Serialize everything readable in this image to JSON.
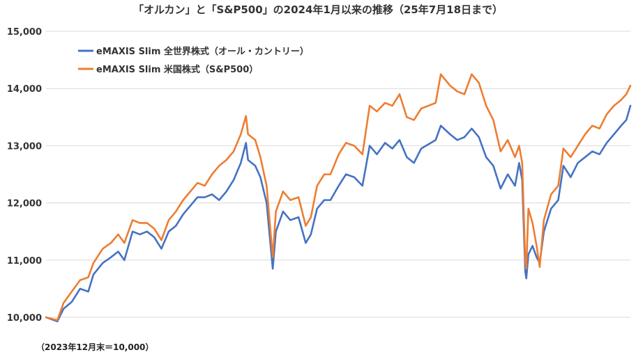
{
  "chart_data": {
    "type": "line",
    "title": "「オルカン」と「S&P500」の2024年1月以来の推移（25年7月18日まで）",
    "footnote": "（2023年12月末＝10,000）",
    "xlabel": "",
    "ylabel": "",
    "ylim": [
      10000,
      15000
    ],
    "yticks": [
      "10,000",
      "11,000",
      "12,000",
      "13,000",
      "14,000",
      "15,000"
    ],
    "ytick_values": [
      10000,
      11000,
      12000,
      13000,
      14000,
      15000
    ],
    "grid": true,
    "legend_position": "top-left",
    "x_range": [
      "2023-12-29",
      "2025-07-18"
    ],
    "series": [
      {
        "name": "eMAXIS Slim 全世界株式（オール・カントリー）",
        "color": "#4472C4",
        "points": [
          [
            "2023-12-29",
            10000
          ],
          [
            "2024-01-09",
            9930
          ],
          [
            "2024-01-15",
            10150
          ],
          [
            "2024-01-23",
            10270
          ],
          [
            "2024-01-31",
            10500
          ],
          [
            "2024-02-08",
            10450
          ],
          [
            "2024-02-13",
            10750
          ],
          [
            "2024-02-22",
            10950
          ],
          [
            "2024-03-01",
            11050
          ],
          [
            "2024-03-08",
            11150
          ],
          [
            "2024-03-14",
            11000
          ],
          [
            "2024-03-22",
            11500
          ],
          [
            "2024-03-29",
            11450
          ],
          [
            "2024-04-05",
            11500
          ],
          [
            "2024-04-12",
            11400
          ],
          [
            "2024-04-19",
            11200
          ],
          [
            "2024-04-26",
            11500
          ],
          [
            "2024-05-03",
            11600
          ],
          [
            "2024-05-10",
            11800
          ],
          [
            "2024-05-17",
            11950
          ],
          [
            "2024-05-24",
            12100
          ],
          [
            "2024-05-31",
            12100
          ],
          [
            "2024-06-07",
            12150
          ],
          [
            "2024-06-14",
            12050
          ],
          [
            "2024-06-21",
            12200
          ],
          [
            "2024-06-28",
            12400
          ],
          [
            "2024-07-05",
            12700
          ],
          [
            "2024-07-10",
            13050
          ],
          [
            "2024-07-12",
            12750
          ],
          [
            "2024-07-19",
            12650
          ],
          [
            "2024-07-24",
            12450
          ],
          [
            "2024-07-30",
            12000
          ],
          [
            "2024-08-05",
            10850
          ],
          [
            "2024-08-08",
            11500
          ],
          [
            "2024-08-15",
            11850
          ],
          [
            "2024-08-22",
            11700
          ],
          [
            "2024-08-30",
            11750
          ],
          [
            "2024-09-06",
            11300
          ],
          [
            "2024-09-11",
            11450
          ],
          [
            "2024-09-17",
            11900
          ],
          [
            "2024-09-24",
            12050
          ],
          [
            "2024-09-30",
            12050
          ],
          [
            "2024-10-08",
            12300
          ],
          [
            "2024-10-15",
            12500
          ],
          [
            "2024-10-23",
            12450
          ],
          [
            "2024-10-31",
            12300
          ],
          [
            "2024-11-07",
            13000
          ],
          [
            "2024-11-14",
            12850
          ],
          [
            "2024-11-22",
            13050
          ],
          [
            "2024-11-29",
            12950
          ],
          [
            "2024-12-06",
            13100
          ],
          [
            "2024-12-13",
            12800
          ],
          [
            "2024-12-20",
            12700
          ],
          [
            "2024-12-27",
            12950
          ],
          [
            "2025-01-10",
            13100
          ],
          [
            "2025-01-15",
            13350
          ],
          [
            "2025-01-24",
            13200
          ],
          [
            "2025-01-31",
            13100
          ],
          [
            "2025-02-07",
            13150
          ],
          [
            "2025-02-14",
            13300
          ],
          [
            "2025-02-21",
            13150
          ],
          [
            "2025-02-28",
            12800
          ],
          [
            "2025-03-07",
            12650
          ],
          [
            "2025-03-14",
            12250
          ],
          [
            "2025-03-21",
            12500
          ],
          [
            "2025-03-28",
            12300
          ],
          [
            "2025-04-01",
            12700
          ],
          [
            "2025-04-04",
            12400
          ],
          [
            "2025-04-07",
            10800
          ],
          [
            "2025-04-08",
            10680
          ],
          [
            "2025-04-10",
            11100
          ],
          [
            "2025-04-14",
            11250
          ],
          [
            "2025-04-18",
            11050
          ],
          [
            "2025-04-21",
            10950
          ],
          [
            "2025-04-25",
            11500
          ],
          [
            "2025-05-02",
            11900
          ],
          [
            "2025-05-09",
            12050
          ],
          [
            "2025-05-14",
            12650
          ],
          [
            "2025-05-21",
            12450
          ],
          [
            "2025-05-28",
            12700
          ],
          [
            "2025-06-04",
            12800
          ],
          [
            "2025-06-11",
            12900
          ],
          [
            "2025-06-18",
            12850
          ],
          [
            "2025-06-25",
            13050
          ],
          [
            "2025-07-02",
            13200
          ],
          [
            "2025-07-09",
            13350
          ],
          [
            "2025-07-14",
            13450
          ],
          [
            "2025-07-18",
            13700
          ]
        ]
      },
      {
        "name": "eMAXIS Slim 米国株式（S&P500）",
        "color": "#ED7D31",
        "points": [
          [
            "2023-12-29",
            10000
          ],
          [
            "2024-01-09",
            9950
          ],
          [
            "2024-01-15",
            10250
          ],
          [
            "2024-01-23",
            10450
          ],
          [
            "2024-01-31",
            10650
          ],
          [
            "2024-02-08",
            10700
          ],
          [
            "2024-02-13",
            10950
          ],
          [
            "2024-02-22",
            11200
          ],
          [
            "2024-03-01",
            11300
          ],
          [
            "2024-03-08",
            11450
          ],
          [
            "2024-03-14",
            11300
          ],
          [
            "2024-03-22",
            11700
          ],
          [
            "2024-03-29",
            11650
          ],
          [
            "2024-04-05",
            11650
          ],
          [
            "2024-04-12",
            11550
          ],
          [
            "2024-04-19",
            11350
          ],
          [
            "2024-04-26",
            11700
          ],
          [
            "2024-05-03",
            11850
          ],
          [
            "2024-05-10",
            12050
          ],
          [
            "2024-05-17",
            12200
          ],
          [
            "2024-05-24",
            12350
          ],
          [
            "2024-05-31",
            12300
          ],
          [
            "2024-06-07",
            12500
          ],
          [
            "2024-06-14",
            12650
          ],
          [
            "2024-06-21",
            12750
          ],
          [
            "2024-06-28",
            12900
          ],
          [
            "2024-07-05",
            13200
          ],
          [
            "2024-07-10",
            13520
          ],
          [
            "2024-07-12",
            13200
          ],
          [
            "2024-07-19",
            13100
          ],
          [
            "2024-07-24",
            12800
          ],
          [
            "2024-07-30",
            12300
          ],
          [
            "2024-08-05",
            11050
          ],
          [
            "2024-08-08",
            11850
          ],
          [
            "2024-08-15",
            12200
          ],
          [
            "2024-08-22",
            12050
          ],
          [
            "2024-08-30",
            12100
          ],
          [
            "2024-09-06",
            11600
          ],
          [
            "2024-09-11",
            11750
          ],
          [
            "2024-09-17",
            12300
          ],
          [
            "2024-09-24",
            12500
          ],
          [
            "2024-09-30",
            12500
          ],
          [
            "2024-10-08",
            12850
          ],
          [
            "2024-10-15",
            13050
          ],
          [
            "2024-10-23",
            13000
          ],
          [
            "2024-10-31",
            12850
          ],
          [
            "2024-11-07",
            13700
          ],
          [
            "2024-11-14",
            13600
          ],
          [
            "2024-11-22",
            13750
          ],
          [
            "2024-11-29",
            13700
          ],
          [
            "2024-12-06",
            13900
          ],
          [
            "2024-12-13",
            13500
          ],
          [
            "2024-12-20",
            13450
          ],
          [
            "2024-12-27",
            13650
          ],
          [
            "2025-01-10",
            13750
          ],
          [
            "2025-01-15",
            14250
          ],
          [
            "2025-01-24",
            14050
          ],
          [
            "2025-01-31",
            13950
          ],
          [
            "2025-02-07",
            13900
          ],
          [
            "2025-02-14",
            14250
          ],
          [
            "2025-02-21",
            14100
          ],
          [
            "2025-02-28",
            13700
          ],
          [
            "2025-03-07",
            13450
          ],
          [
            "2025-03-14",
            12900
          ],
          [
            "2025-03-21",
            13100
          ],
          [
            "2025-03-28",
            12800
          ],
          [
            "2025-04-01",
            13000
          ],
          [
            "2025-04-04",
            12700
          ],
          [
            "2025-04-07",
            11000
          ],
          [
            "2025-04-08",
            10850
          ],
          [
            "2025-04-10",
            11900
          ],
          [
            "2025-04-14",
            11650
          ],
          [
            "2025-04-18",
            11250
          ],
          [
            "2025-04-21",
            10880
          ],
          [
            "2025-04-25",
            11700
          ],
          [
            "2025-05-02",
            12150
          ],
          [
            "2025-05-09",
            12300
          ],
          [
            "2025-05-14",
            12950
          ],
          [
            "2025-05-21",
            12800
          ],
          [
            "2025-05-28",
            13000
          ],
          [
            "2025-06-04",
            13200
          ],
          [
            "2025-06-11",
            13350
          ],
          [
            "2025-06-18",
            13300
          ],
          [
            "2025-06-25",
            13550
          ],
          [
            "2025-07-02",
            13700
          ],
          [
            "2025-07-09",
            13800
          ],
          [
            "2025-07-14",
            13900
          ],
          [
            "2025-07-18",
            14050
          ]
        ]
      }
    ]
  }
}
